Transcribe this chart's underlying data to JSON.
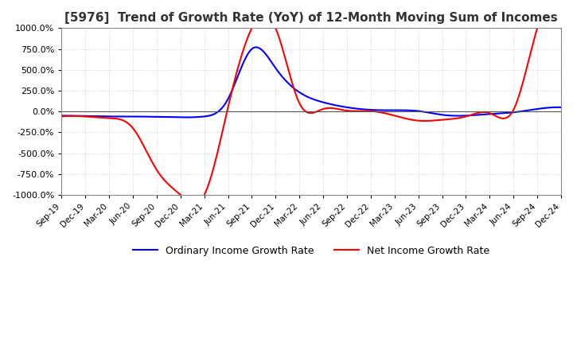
{
  "title": "[5976]  Trend of Growth Rate (YoY) of 12-Month Moving Sum of Incomes",
  "title_fontsize": 11,
  "ylim": [
    -1000,
    1000
  ],
  "yticks": [
    -1000,
    -750,
    -500,
    -250,
    0,
    250,
    500,
    750,
    1000
  ],
  "background_color": "#ffffff",
  "grid_color": "#c8c8c8",
  "ordinary_color": "#0000ff",
  "net_color": "#ff0000",
  "legend_ordinary": "Ordinary Income Growth Rate",
  "legend_net": "Net Income Growth Rate",
  "x_labels": [
    "Sep-19",
    "Dec-19",
    "Mar-20",
    "Jun-20",
    "Sep-20",
    "Dec-20",
    "Mar-21",
    "Jun-21",
    "Sep-21",
    "Dec-21",
    "Mar-22",
    "Jun-22",
    "Sep-22",
    "Dec-22",
    "Mar-23",
    "Jun-23",
    "Sep-23",
    "Dec-23",
    "Mar-24",
    "Jun-24",
    "Sep-24",
    "Dec-24"
  ],
  "ordinary_income": [
    -50,
    -55,
    -60,
    -60,
    -65,
    -70,
    -60,
    150,
    750,
    520,
    230,
    110,
    50,
    20,
    15,
    5,
    -40,
    -50,
    -30,
    -10,
    30,
    50
  ],
  "net_income": [
    -60,
    -60,
    -80,
    -200,
    -700,
    -1000,
    -1000,
    50,
    1000,
    1000,
    100,
    30,
    10,
    5,
    -50,
    -110,
    -100,
    -60,
    -20,
    20,
    1000,
    1000
  ]
}
